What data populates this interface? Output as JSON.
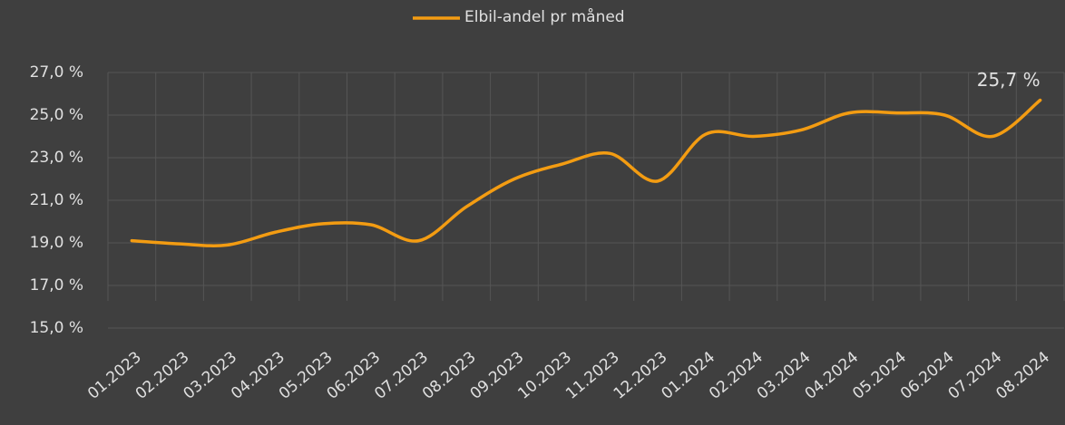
{
  "chart_data": {
    "type": "line",
    "categories": [
      "01.2023",
      "02.2023",
      "03.2023",
      "04.2023",
      "05.2023",
      "06.2023",
      "07.2023",
      "08.2023",
      "09.2023",
      "10.2023",
      "11.2023",
      "12.2023",
      "01.2024",
      "02.2024",
      "03.2024",
      "04.2024",
      "05.2024",
      "06.2024",
      "07.2024",
      "08.2024"
    ],
    "series": [
      {
        "name": "Elbil-andel pr måned",
        "color": "#f39c12",
        "values": [
          19.1,
          18.95,
          18.9,
          19.5,
          19.9,
          19.85,
          19.1,
          20.7,
          22.0,
          22.7,
          23.2,
          21.9,
          24.1,
          24.0,
          24.3,
          25.1,
          25.1,
          25.0,
          24.0,
          25.7
        ],
        "value_labels": [
          null,
          null,
          null,
          null,
          null,
          null,
          null,
          null,
          null,
          null,
          null,
          null,
          null,
          null,
          null,
          null,
          null,
          null,
          null,
          "25,7 %"
        ]
      }
    ],
    "ylim": [
      15,
      27
    ],
    "yticks": [
      {
        "value": 15,
        "label": "15,0 %"
      },
      {
        "value": 17,
        "label": "17,0 %"
      },
      {
        "value": 19,
        "label": "19,0 %"
      },
      {
        "value": 21,
        "label": "21,0 %"
      },
      {
        "value": 23,
        "label": "23,0 %"
      },
      {
        "value": 25,
        "label": "25,0 %"
      },
      {
        "value": 27,
        "label": "27,0 %"
      }
    ],
    "grid": true,
    "legend": "top"
  }
}
